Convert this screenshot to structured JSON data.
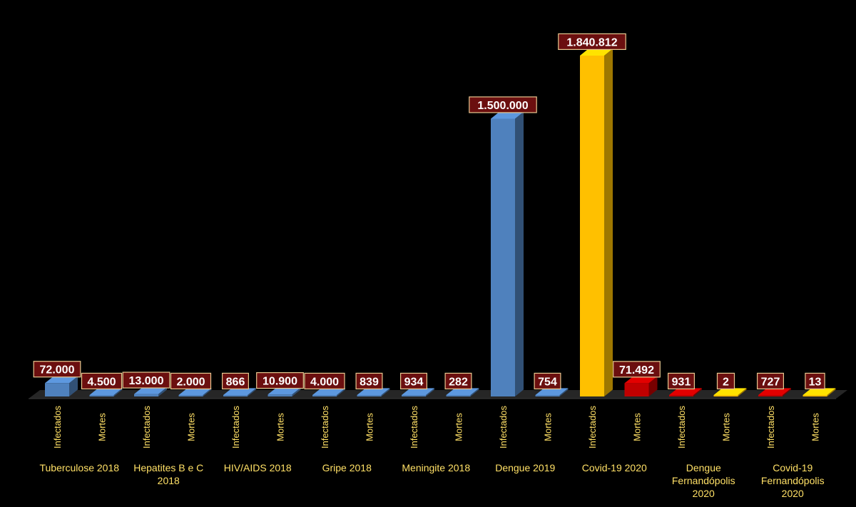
{
  "chart_data": {
    "type": "bar",
    "groups": [
      {
        "label": [
          "Tuberculose 2018"
        ],
        "bars": [
          {
            "sub": "Infectados",
            "value": 72000,
            "display": "72.000",
            "color": "#4f81bd"
          },
          {
            "sub": "Mortes",
            "value": 4500,
            "display": "4.500",
            "color": "#4f81bd"
          }
        ]
      },
      {
        "label": [
          "Hepatites B e C",
          "2018"
        ],
        "bars": [
          {
            "sub": "Infectados",
            "value": 13000,
            "display": "13.000",
            "color": "#4f81bd"
          },
          {
            "sub": "Mortes",
            "value": 2000,
            "display": "2.000",
            "color": "#4f81bd"
          }
        ]
      },
      {
        "label": [
          "HIV/AIDS 2018"
        ],
        "bars": [
          {
            "sub": "Infectados",
            "value": 866,
            "display": "866",
            "color": "#4f81bd"
          },
          {
            "sub": "Mortes",
            "value": 10900,
            "display": "10.900",
            "color": "#4f81bd"
          }
        ]
      },
      {
        "label": [
          "Gripe 2018"
        ],
        "bars": [
          {
            "sub": "Infectados",
            "value": 4000,
            "display": "4.000",
            "color": "#4f81bd"
          },
          {
            "sub": "Mortes",
            "value": 839,
            "display": "839",
            "color": "#4f81bd"
          }
        ]
      },
      {
        "label": [
          "Meningite 2018"
        ],
        "bars": [
          {
            "sub": "Infectados",
            "value": 934,
            "display": "934",
            "color": "#4f81bd"
          },
          {
            "sub": "Mortes",
            "value": 282,
            "display": "282",
            "color": "#4f81bd"
          }
        ]
      },
      {
        "label": [
          "Dengue 2019"
        ],
        "bars": [
          {
            "sub": "Infectados",
            "value": 1500000,
            "display": "1.500.000",
            "color": "#4f81bd"
          },
          {
            "sub": "Mortes",
            "value": 754,
            "display": "754",
            "color": "#4f81bd"
          }
        ]
      },
      {
        "label": [
          "Covid-19 2020"
        ],
        "bars": [
          {
            "sub": "Infectados",
            "value": 1840812,
            "display": "1.840.812",
            "color": "#ffc000"
          },
          {
            "sub": "Mortes",
            "value": 71492,
            "display": "71.492",
            "color": "#c00000"
          }
        ]
      },
      {
        "label": [
          "Dengue",
          "Fernandópolis",
          "2020"
        ],
        "bars": [
          {
            "sub": "Infectados",
            "value": 931,
            "display": "931",
            "color": "#c00000"
          },
          {
            "sub": "Mortes",
            "value": 2,
            "display": "2",
            "color": "#ffc000"
          }
        ]
      },
      {
        "label": [
          "Covid-19",
          "Fernandópolis",
          "2020"
        ],
        "bars": [
          {
            "sub": "Infectados",
            "value": 727,
            "display": "727",
            "color": "#c00000"
          },
          {
            "sub": "Mortes",
            "value": 13,
            "display": "13",
            "color": "#ffc000"
          }
        ]
      }
    ],
    "ylim": [
      0,
      1840812
    ],
    "grid": false,
    "legend": "none"
  }
}
